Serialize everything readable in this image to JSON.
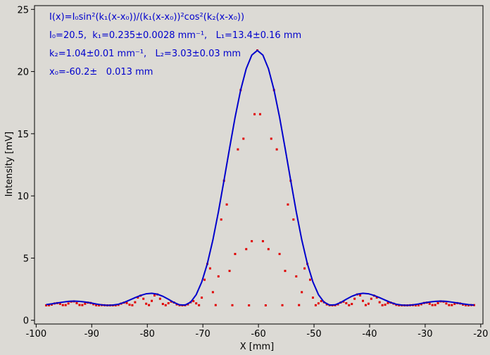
{
  "chart_data": {
    "type": "line",
    "xlabel": "X [mm]",
    "ylabel": "Intensity [mV]",
    "annotations": [
      "I(x)=I₀sin²(k₁(x-x₀))/(k₁(x-x₀))²cos²(k₂(x-x₀))",
      "I₀=20.5,  k₁=0.235±0.0028 mm⁻¹,   L₁=13.4±0.16 mm",
      "k₂=1.04±0.01 mm⁻¹,   L₂=3.03±0.03 mm",
      "x₀=-60.2±   0.013 mm"
    ],
    "xlim": [
      -100.3,
      -19.6
    ],
    "ylim": [
      -0.3,
      25.3
    ],
    "xticks": [
      -100,
      -90,
      -80,
      -70,
      -60,
      -50,
      -40,
      -30,
      -20
    ],
    "yticks": [
      0,
      5,
      10,
      15,
      20,
      25
    ],
    "series": [
      {
        "mode": "markers",
        "color": "#e00000",
        "x": [
          -98.2,
          -97.7,
          -97.2,
          -96.7,
          -96.2,
          -95.7,
          -95.2,
          -94.7,
          -94.2,
          -93.7,
          -93.2,
          -92.7,
          -92.2,
          -91.7,
          -91.2,
          -90.7,
          -90.2,
          -89.7,
          -89.2,
          -88.7,
          -88.2,
          -87.7,
          -87.2,
          -86.7,
          -86.2,
          -85.7,
          -85.2,
          -84.7,
          -84.2,
          -83.7,
          -83.2,
          -82.7,
          -82.2,
          -81.7,
          -81.2,
          -80.7,
          -80.2,
          -79.7,
          -79.2,
          -78.7,
          -78.2,
          -77.7,
          -77.2,
          -76.7,
          -76.2,
          -75.7,
          -75.2,
          -74.7,
          -74.2,
          -73.7,
          -73.2,
          -72.7,
          -72.2,
          -71.7,
          -71.2,
          -70.7,
          -70.2,
          -69.7,
          -69.2,
          -68.7,
          -68.2,
          -67.7,
          -67.2,
          -66.7,
          -66.2,
          -65.7,
          -65.2,
          -64.7,
          -64.2,
          -63.7,
          -63.2,
          -62.7,
          -62.2,
          -61.7,
          -61.2,
          -60.7,
          -60.2,
          -59.7,
          -59.2,
          -58.7,
          -58.2,
          -57.7,
          -57.2,
          -56.7,
          -56.2,
          -55.7,
          -55.2,
          -54.7,
          -54.2,
          -53.7,
          -53.2,
          -52.7,
          -52.2,
          -51.7,
          -51.2,
          -50.7,
          -50.2,
          -49.7,
          -49.2,
          -48.7,
          -48.2,
          -47.7,
          -47.2,
          -46.7,
          -46.2,
          -45.7,
          -45.2,
          -44.7,
          -44.2,
          -43.7,
          -43.2,
          -42.7,
          -42.2,
          -41.7,
          -41.2,
          -40.7,
          -40.2,
          -39.7,
          -39.2,
          -38.7,
          -38.2,
          -37.7,
          -37.2,
          -36.7,
          -36.2,
          -35.7,
          -35.2,
          -34.7,
          -34.2,
          -33.7,
          -33.2,
          -32.7,
          -32.2,
          -31.7,
          -31.2,
          -30.7,
          -30.2,
          -29.7,
          -29.2,
          -28.7,
          -28.2,
          -27.7,
          -27.2,
          -26.7,
          -26.2,
          -25.7,
          -25.2,
          -24.7,
          -24.2,
          -23.7,
          -23.2,
          -22.7,
          -22.2,
          -21.7,
          -21.2
        ],
        "values": [
          1.2,
          1.21,
          1.26,
          1.35,
          1.38,
          1.32,
          1.22,
          1.22,
          1.35,
          1.5,
          1.52,
          1.38,
          1.23,
          1.22,
          1.33,
          1.42,
          1.39,
          1.29,
          1.21,
          1.2,
          1.22,
          1.21,
          1.2,
          1.2,
          1.2,
          1.2,
          1.24,
          1.34,
          1.42,
          1.39,
          1.25,
          1.21,
          1.45,
          1.83,
          1.98,
          1.73,
          1.33,
          1.22,
          1.56,
          2.0,
          2.08,
          1.73,
          1.31,
          1.21,
          1.37,
          1.5,
          1.43,
          1.28,
          1.21,
          1.2,
          1.21,
          1.28,
          1.45,
          1.54,
          1.36,
          1.21,
          1.82,
          3.26,
          4.53,
          4.17,
          2.26,
          1.22,
          3.53,
          8.1,
          11.22,
          9.31,
          3.97,
          1.21,
          5.33,
          13.74,
          18.51,
          14.6,
          5.72,
          1.2,
          6.36,
          16.57,
          21.7,
          16.57,
          6.36,
          1.2,
          5.72,
          14.6,
          18.51,
          13.74,
          5.33,
          1.21,
          3.97,
          9.31,
          11.22,
          8.1,
          3.53,
          1.22,
          2.26,
          4.17,
          4.53,
          3.26,
          1.82,
          1.21,
          1.36,
          1.54,
          1.45,
          1.28,
          1.21,
          1.2,
          1.21,
          1.28,
          1.43,
          1.5,
          1.37,
          1.21,
          1.31,
          1.73,
          2.08,
          2.0,
          1.56,
          1.22,
          1.33,
          1.73,
          1.98,
          1.83,
          1.45,
          1.21,
          1.25,
          1.39,
          1.42,
          1.34,
          1.24,
          1.2,
          1.2,
          1.2,
          1.2,
          1.21,
          1.22,
          1.2,
          1.21,
          1.29,
          1.39,
          1.42,
          1.33,
          1.22,
          1.23,
          1.38,
          1.52,
          1.5,
          1.35,
          1.22,
          1.22,
          1.32,
          1.38,
          1.35,
          1.26,
          1.21,
          1.2,
          1.22,
          1.22
        ]
      },
      {
        "mode": "line",
        "color": "#0000cc",
        "x": [
          -98.2,
          -97.2,
          -96.2,
          -95.2,
          -94.2,
          -93.2,
          -92.2,
          -91.2,
          -90.2,
          -89.2,
          -88.2,
          -87.2,
          -86.2,
          -85.2,
          -84.2,
          -83.2,
          -82.2,
          -81.2,
          -80.2,
          -79.2,
          -78.2,
          -77.2,
          -76.2,
          -75.2,
          -74.2,
          -73.2,
          -72.2,
          -71.2,
          -70.2,
          -69.2,
          -68.2,
          -67.2,
          -66.2,
          -65.2,
          -64.2,
          -63.2,
          -62.2,
          -61.2,
          -60.2,
          -59.2,
          -58.2,
          -57.2,
          -56.2,
          -55.2,
          -54.2,
          -53.2,
          -52.2,
          -51.2,
          -50.2,
          -49.2,
          -48.2,
          -47.2,
          -46.2,
          -45.2,
          -44.2,
          -43.2,
          -42.2,
          -41.2,
          -40.2,
          -39.2,
          -38.2,
          -37.2,
          -36.2,
          -35.2,
          -34.2,
          -33.2,
          -32.2,
          -31.2,
          -30.2,
          -29.2,
          -28.2,
          -27.2,
          -26.2,
          -25.2,
          -24.2,
          -23.2,
          -22.2,
          -21.2
        ],
        "values": [
          1.26,
          1.32,
          1.39,
          1.46,
          1.52,
          1.54,
          1.52,
          1.47,
          1.4,
          1.31,
          1.24,
          1.2,
          1.22,
          1.29,
          1.43,
          1.62,
          1.82,
          2.0,
          2.13,
          2.17,
          2.1,
          1.93,
          1.69,
          1.43,
          1.24,
          1.22,
          1.46,
          2.06,
          3.08,
          4.55,
          6.46,
          8.73,
          11.25,
          13.83,
          16.33,
          18.52,
          20.23,
          21.32,
          21.7,
          21.32,
          20.23,
          18.52,
          16.33,
          13.83,
          11.25,
          8.73,
          6.46,
          4.55,
          3.08,
          2.06,
          1.46,
          1.22,
          1.24,
          1.43,
          1.69,
          1.93,
          2.1,
          2.17,
          2.13,
          2.0,
          1.82,
          1.62,
          1.43,
          1.29,
          1.22,
          1.2,
          1.24,
          1.31,
          1.4,
          1.47,
          1.52,
          1.54,
          1.52,
          1.46,
          1.39,
          1.32,
          1.26,
          1.22
        ]
      }
    ]
  }
}
